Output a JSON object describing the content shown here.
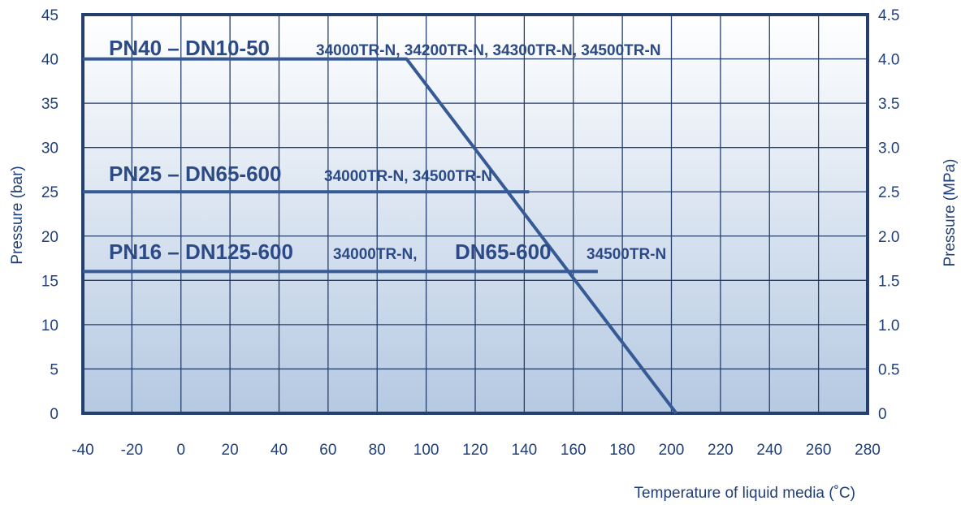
{
  "chart_data": {
    "type": "line",
    "xlabel": "Temperature of liquid media (˚C)",
    "ylabel_left": "Pressure (bar)",
    "ylabel_right": "Pressure (MPa)",
    "xlim": [
      -40,
      280
    ],
    "ylim": [
      0,
      45
    ],
    "x_ticks": [
      "-40",
      "-20",
      "0",
      "20",
      "40",
      "60",
      "80",
      "100",
      "120",
      "140",
      "160",
      "180",
      "200",
      "220",
      "240",
      "260",
      "280"
    ],
    "y_ticks_left": [
      "0",
      "5",
      "10",
      "15",
      "20",
      "25",
      "30",
      "35",
      "40",
      "45"
    ],
    "y_ticks_right": [
      "0",
      "0.5",
      "1.0",
      "1.5",
      "2.0",
      "2.5",
      "3.0",
      "3.5",
      "4.0",
      "4.5"
    ],
    "grid": true,
    "series": [
      {
        "name": "PN40 – DN10-50",
        "x": [
          -40,
          92,
          202
        ],
        "y": [
          40,
          40,
          0
        ]
      },
      {
        "name": "PN25 – DN65-600",
        "x": [
          -40,
          142
        ],
        "y": [
          25,
          25
        ]
      },
      {
        "name": "PN16 – DN125-600",
        "x": [
          -40,
          170
        ],
        "y": [
          16,
          16
        ]
      }
    ],
    "annotations": [
      {
        "big": "PN40 – DN10-50",
        "small": "34000TR-N, 34200TR-N, 34300TR-N, 34500TR-N"
      },
      {
        "big": "PN25 – DN65-600",
        "small": "34000TR-N, 34500TR-N"
      },
      {
        "big": "PN16 – DN125-600",
        "small": "34000TR-N,",
        "big2": "DN65-600",
        "small2": "34500TR-N"
      }
    ],
    "colors": {
      "line": "#355a96",
      "frame": "#253f6d",
      "grid": "#253f6d",
      "text": "#1f3f7a"
    }
  }
}
